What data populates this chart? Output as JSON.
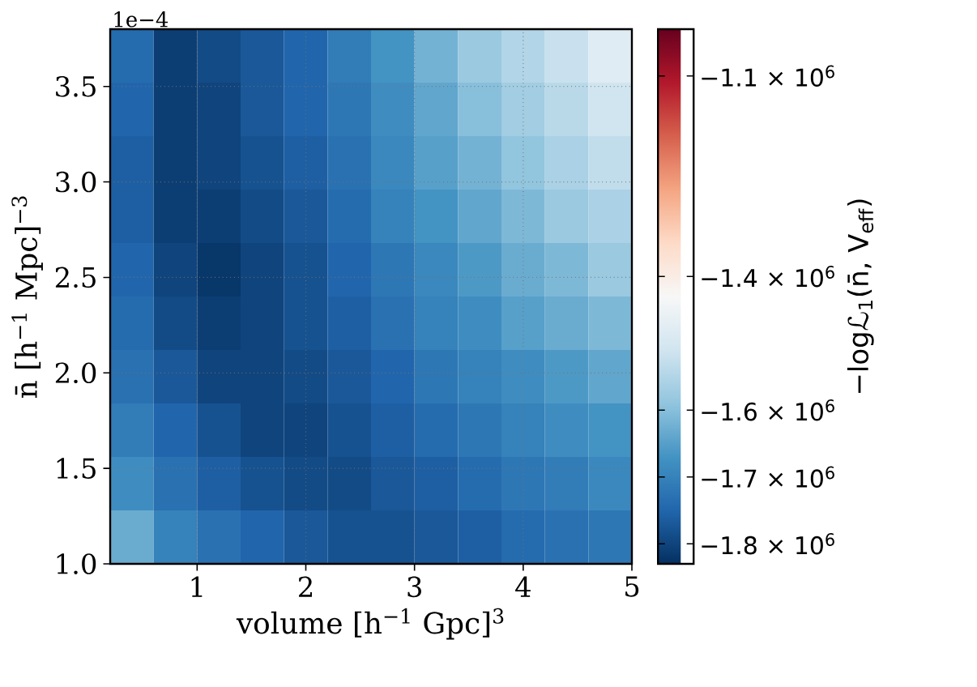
{
  "chart_data": {
    "type": "heatmap",
    "xlabel": "volume [h$^{−1}$ Gpc]$^{3}$",
    "ylabel": "n̄   [h$^{−1}$ Mpc]$^{−3}$",
    "clabel": "−logℒ$_{1}$(n̄, V$_{eff}$)",
    "annotations": [
      "1e−4"
    ],
    "xlim": [
      0.2,
      5
    ],
    "xticks": [
      1,
      2,
      3,
      4,
      5
    ],
    "ylim": [
      1.0,
      3.8
    ],
    "yticks": [
      {
        "value": 1.0,
        "label": "1.0"
      },
      {
        "value": 1.5,
        "label": "1.5"
      },
      {
        "value": 2.0,
        "label": "2.0"
      },
      {
        "value": 2.5,
        "label": "2.5"
      },
      {
        "value": 3.0,
        "label": "3.0"
      },
      {
        "value": 3.5,
        "label": "3.5"
      }
    ],
    "grid": true,
    "clim": [
      -1830000,
      -1030000
    ],
    "cticks": [
      {
        "value": -1100000,
        "label": "−1.1 × 10$^{6}$"
      },
      {
        "value": -1400000,
        "label": "−1.4 × 10$^{6}$"
      },
      {
        "value": -1600000,
        "label": "−1.6 × 10$^{6}$"
      },
      {
        "value": -1700000,
        "label": "−1.7 × 10$^{6}$"
      },
      {
        "value": -1800000,
        "label": "−1.8 × 10$^{6}$"
      }
    ],
    "cells": [
      [
        -1740000,
        -1810000,
        -1790000,
        -1770000,
        -1750000,
        -1710000,
        -1670000,
        -1620000,
        -1580000,
        -1550000,
        -1520000,
        -1480000
      ],
      [
        -1750000,
        -1810000,
        -1800000,
        -1770000,
        -1750000,
        -1720000,
        -1680000,
        -1640000,
        -1600000,
        -1570000,
        -1540000,
        -1510000
      ],
      [
        -1760000,
        -1810000,
        -1800000,
        -1780000,
        -1760000,
        -1730000,
        -1690000,
        -1650000,
        -1620000,
        -1590000,
        -1560000,
        -1530000
      ],
      [
        -1760000,
        -1810000,
        -1810000,
        -1790000,
        -1770000,
        -1740000,
        -1700000,
        -1670000,
        -1640000,
        -1610000,
        -1580000,
        -1560000
      ],
      [
        -1750000,
        -1800000,
        -1820000,
        -1800000,
        -1780000,
        -1750000,
        -1720000,
        -1690000,
        -1660000,
        -1630000,
        -1610000,
        -1580000
      ],
      [
        -1740000,
        -1790000,
        -1810000,
        -1800000,
        -1780000,
        -1760000,
        -1730000,
        -1700000,
        -1680000,
        -1650000,
        -1630000,
        -1610000
      ],
      [
        -1730000,
        -1770000,
        -1800000,
        -1800000,
        -1790000,
        -1770000,
        -1750000,
        -1720000,
        -1700000,
        -1680000,
        -1660000,
        -1640000
      ],
      [
        -1710000,
        -1750000,
        -1780000,
        -1800000,
        -1800000,
        -1780000,
        -1760000,
        -1740000,
        -1720000,
        -1700000,
        -1680000,
        -1670000
      ],
      [
        -1680000,
        -1730000,
        -1760000,
        -1780000,
        -1790000,
        -1790000,
        -1770000,
        -1760000,
        -1740000,
        -1720000,
        -1710000,
        -1690000
      ],
      [
        -1630000,
        -1700000,
        -1730000,
        -1750000,
        -1770000,
        -1780000,
        -1780000,
        -1770000,
        -1760000,
        -1740000,
        -1730000,
        -1720000
      ]
    ]
  }
}
